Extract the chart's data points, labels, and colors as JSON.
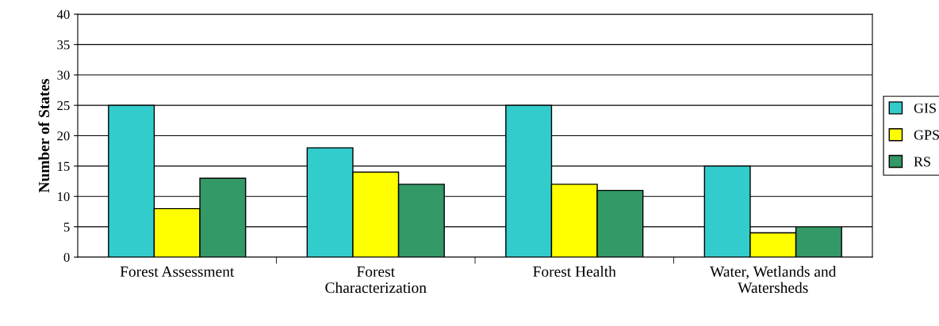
{
  "chart_data": {
    "type": "bar",
    "ylabel": "Number of States",
    "categories": [
      "Forest Assessment",
      "Forest\nCharacterization",
      "Forest Health",
      "Water, Wetlands and\nWatersheds"
    ],
    "series": [
      {
        "name": "GIS",
        "color": "#33cccc",
        "values": [
          25,
          18,
          25,
          15
        ]
      },
      {
        "name": "GPS",
        "color": "#ffff00",
        "values": [
          8,
          14,
          12,
          4
        ]
      },
      {
        "name": "RS",
        "color": "#339966",
        "values": [
          13,
          12,
          11,
          5
        ]
      }
    ],
    "ylim": [
      0,
      40
    ],
    "yticks": [
      0,
      5,
      10,
      15,
      20,
      25,
      30,
      35,
      40
    ],
    "grid": "y",
    "legend": "right"
  }
}
